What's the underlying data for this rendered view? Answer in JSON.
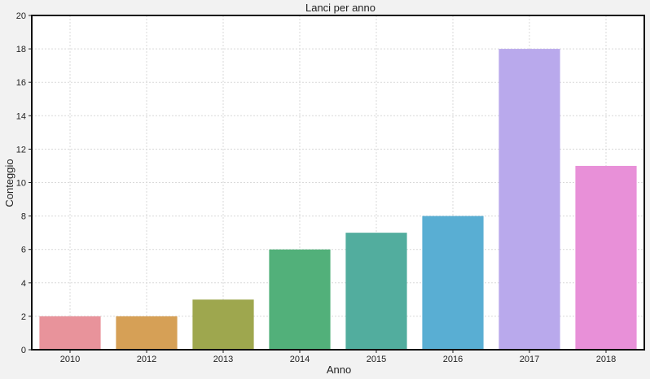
{
  "chart_data": {
    "type": "bar",
    "title": "Lanci per anno",
    "xlabel": "Anno",
    "ylabel": "Conteggio",
    "categories": [
      "2010",
      "2012",
      "2013",
      "2014",
      "2015",
      "2016",
      "2017",
      "2018"
    ],
    "values": [
      2,
      2,
      3,
      6,
      7,
      8,
      18,
      11
    ],
    "colors": [
      "#e8939b",
      "#d6a056",
      "#9ea74e",
      "#52b07a",
      "#52ad9e",
      "#59aed3",
      "#b9a9ec",
      "#e890d8"
    ],
    "ylim": [
      0,
      20
    ],
    "yticks": [
      "0",
      "2",
      "4",
      "6",
      "8",
      "10",
      "12",
      "14",
      "16",
      "18",
      "20"
    ],
    "grid": true,
    "legend": "none"
  }
}
